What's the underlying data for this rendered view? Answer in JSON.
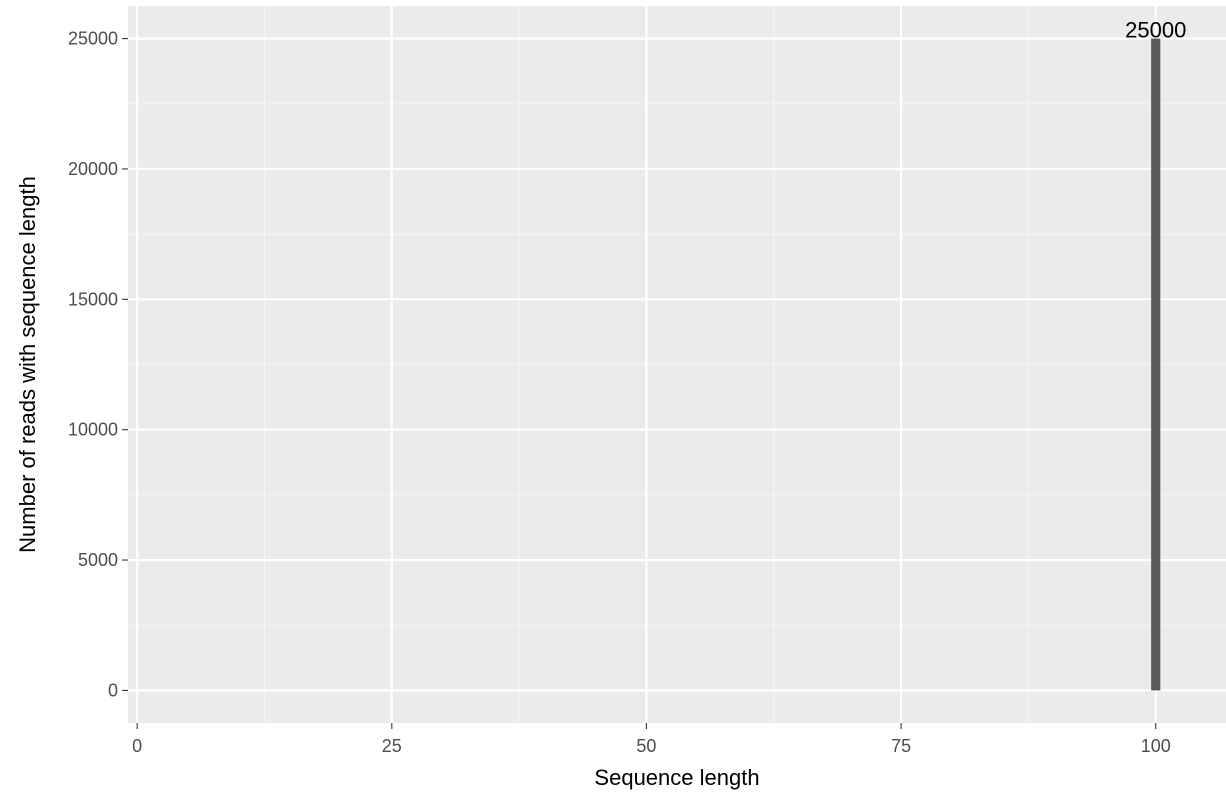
{
  "chart_data": {
    "type": "bar",
    "title": "",
    "xlabel": "Sequence length",
    "ylabel": "Number of reads with sequence length",
    "x": [
      100
    ],
    "values": [
      25000
    ],
    "data_labels": [
      "25000"
    ],
    "xlim": [
      -0.9,
      106.9
    ],
    "ylim": [
      -1250,
      26250
    ],
    "xticks": [
      0,
      25,
      50,
      75,
      100
    ],
    "xtick_labels": [
      "0",
      "25",
      "50",
      "75",
      "100"
    ],
    "yticks": [
      0,
      5000,
      10000,
      15000,
      20000,
      25000
    ],
    "ytick_labels": [
      "0",
      "5000",
      "10000",
      "15000",
      "20000",
      "25000"
    ],
    "grid": true,
    "legend": "none",
    "colors": {
      "panel_background": "#EBEBEB",
      "grid_major": "#FFFFFF",
      "grid_minor": "#F5F5F5",
      "bar_fill": "#595959",
      "tick_color": "#333333"
    }
  }
}
